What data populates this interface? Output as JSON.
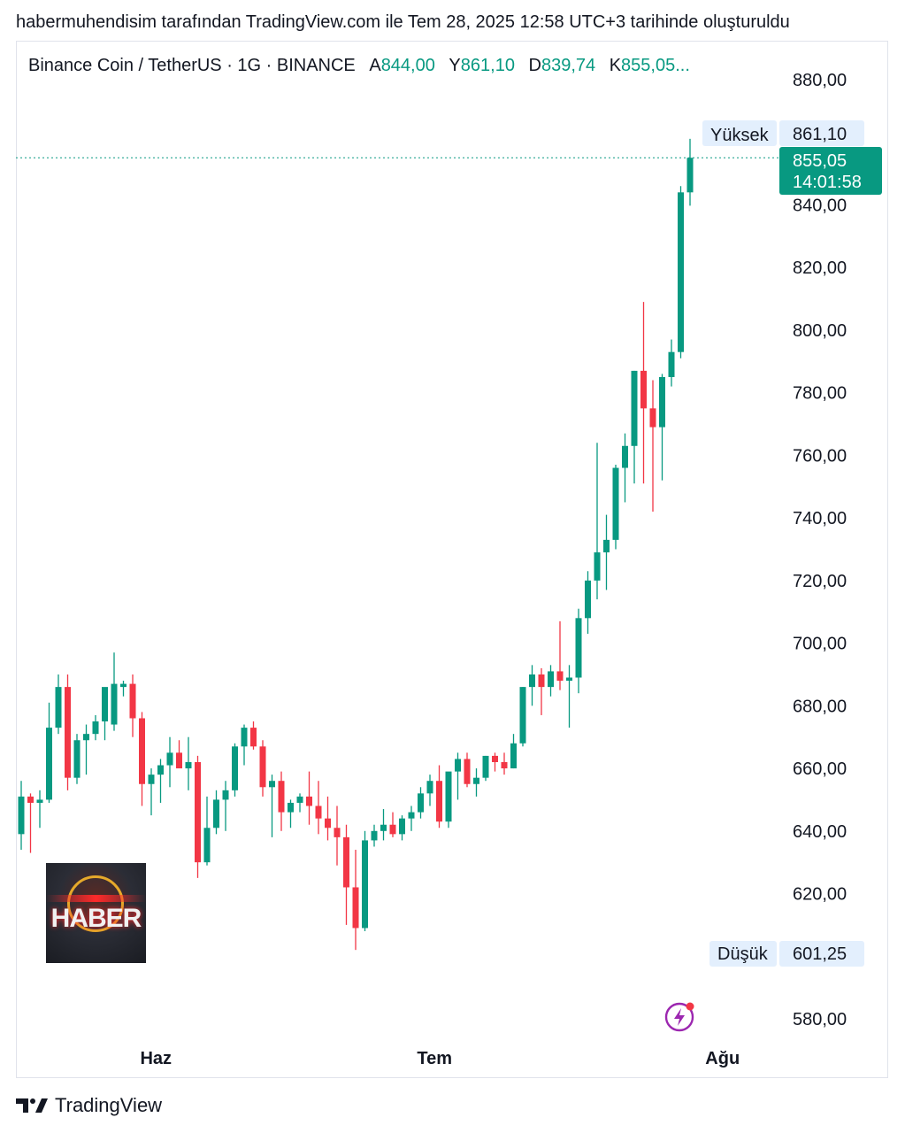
{
  "caption": "habermuhendisim tarafından TradingView.com ile Tem 28, 2025 12:58 UTC+3 tarihinde oluşturuldu",
  "legend": {
    "symbol": "Binance Coin / TetherUS · 1G · BINANCE",
    "open_label": "A",
    "open": "844,00",
    "high_label": "Y",
    "high": "861,10",
    "low_label": "D",
    "low": "839,74",
    "close_label": "K",
    "close": "855,05..."
  },
  "tags": {
    "high_label": "Yüksek",
    "high_value": "861,10",
    "low_label": "Düşük",
    "low_value": "601,25",
    "last_price": "855,05",
    "countdown": "14:01:58"
  },
  "logo_text": "HABER",
  "footer_brand": "TradingView",
  "colors": {
    "up": "#089981",
    "down": "#f23645",
    "tag_bg": "#e3effd",
    "text": "#131722"
  },
  "icons": {
    "watermark": "haber-logo-icon",
    "footer": "tradingview-logo-icon",
    "alert": "lightning-icon"
  },
  "chart_data": {
    "type": "candlestick",
    "y_ticks": [
      "880,00",
      "840,00",
      "820,00",
      "800,00",
      "780,00",
      "760,00",
      "740,00",
      "720,00",
      "700,00",
      "680,00",
      "660,00",
      "640,00",
      "620,00",
      "580,00"
    ],
    "y_tick_values": [
      880,
      840,
      820,
      800,
      780,
      760,
      740,
      720,
      700,
      680,
      660,
      640,
      620,
      580
    ],
    "x_ticks": [
      "Haz",
      "Tem",
      "Ağu"
    ],
    "x_tick_index": [
      14.5,
      44.5,
      75.5
    ],
    "ylim": [
      575,
      886
    ],
    "candles": [
      {
        "o": 639,
        "h": 656,
        "l": 634,
        "c": 651
      },
      {
        "o": 651,
        "h": 652,
        "l": 633,
        "c": 649
      },
      {
        "o": 649,
        "h": 653,
        "l": 641,
        "c": 650
      },
      {
        "o": 650,
        "h": 681,
        "l": 649,
        "c": 673
      },
      {
        "o": 673,
        "h": 690,
        "l": 671,
        "c": 686
      },
      {
        "o": 686,
        "h": 690,
        "l": 653,
        "c": 657
      },
      {
        "o": 657,
        "h": 671,
        "l": 655,
        "c": 669
      },
      {
        "o": 669,
        "h": 674,
        "l": 658,
        "c": 671
      },
      {
        "o": 671,
        "h": 677,
        "l": 669,
        "c": 675
      },
      {
        "o": 675,
        "h": 685,
        "l": 669,
        "c": 686
      },
      {
        "o": 674,
        "h": 697,
        "l": 672,
        "c": 687
      },
      {
        "o": 686,
        "h": 688,
        "l": 683,
        "c": 687
      },
      {
        "o": 687,
        "h": 690,
        "l": 670,
        "c": 676
      },
      {
        "o": 676,
        "h": 678,
        "l": 648,
        "c": 655
      },
      {
        "o": 655,
        "h": 660,
        "l": 645,
        "c": 658
      },
      {
        "o": 658,
        "h": 663,
        "l": 649,
        "c": 661
      },
      {
        "o": 661,
        "h": 670,
        "l": 654,
        "c": 665
      },
      {
        "o": 665,
        "h": 669,
        "l": 661,
        "c": 660
      },
      {
        "o": 660,
        "h": 670,
        "l": 653,
        "c": 662
      },
      {
        "o": 662,
        "h": 664,
        "l": 625,
        "c": 630
      },
      {
        "o": 630,
        "h": 651,
        "l": 629,
        "c": 641
      },
      {
        "o": 641,
        "h": 653,
        "l": 639,
        "c": 650
      },
      {
        "o": 650,
        "h": 656,
        "l": 640,
        "c": 653
      },
      {
        "o": 653,
        "h": 668,
        "l": 651,
        "c": 667
      },
      {
        "o": 667,
        "h": 674,
        "l": 661,
        "c": 673
      },
      {
        "o": 673,
        "h": 675,
        "l": 666,
        "c": 667
      },
      {
        "o": 667,
        "h": 669,
        "l": 651,
        "c": 654
      },
      {
        "o": 654,
        "h": 658,
        "l": 638,
        "c": 656
      },
      {
        "o": 656,
        "h": 659,
        "l": 640,
        "c": 646
      },
      {
        "o": 646,
        "h": 650,
        "l": 641,
        "c": 649
      },
      {
        "o": 649,
        "h": 652,
        "l": 646,
        "c": 651
      },
      {
        "o": 651,
        "h": 659,
        "l": 642,
        "c": 648
      },
      {
        "o": 648,
        "h": 656,
        "l": 639,
        "c": 644
      },
      {
        "o": 644,
        "h": 651,
        "l": 637,
        "c": 641
      },
      {
        "o": 641,
        "h": 648,
        "l": 629,
        "c": 638
      },
      {
        "o": 638,
        "h": 642,
        "l": 610,
        "c": 622
      },
      {
        "o": 622,
        "h": 634,
        "l": 602,
        "c": 609
      },
      {
        "o": 609,
        "h": 640,
        "l": 608,
        "c": 637
      },
      {
        "o": 637,
        "h": 642,
        "l": 635,
        "c": 640
      },
      {
        "o": 640,
        "h": 647,
        "l": 637,
        "c": 642
      },
      {
        "o": 642,
        "h": 646,
        "l": 638,
        "c": 639
      },
      {
        "o": 639,
        "h": 645,
        "l": 637,
        "c": 644
      },
      {
        "o": 644,
        "h": 648,
        "l": 640,
        "c": 646
      },
      {
        "o": 646,
        "h": 654,
        "l": 644,
        "c": 652
      },
      {
        "o": 652,
        "h": 658,
        "l": 648,
        "c": 656
      },
      {
        "o": 656,
        "h": 661,
        "l": 641,
        "c": 643
      },
      {
        "o": 643,
        "h": 657,
        "l": 641,
        "c": 659
      },
      {
        "o": 659,
        "h": 665,
        "l": 650,
        "c": 663
      },
      {
        "o": 663,
        "h": 665,
        "l": 654,
        "c": 655
      },
      {
        "o": 655,
        "h": 660,
        "l": 651,
        "c": 657
      },
      {
        "o": 657,
        "h": 664,
        "l": 656,
        "c": 664
      },
      {
        "o": 664,
        "h": 665,
        "l": 659,
        "c": 662
      },
      {
        "o": 662,
        "h": 665,
        "l": 658,
        "c": 660
      },
      {
        "o": 660,
        "h": 671,
        "l": 660,
        "c": 668
      },
      {
        "o": 668,
        "h": 686,
        "l": 667,
        "c": 686
      },
      {
        "o": 686,
        "h": 693,
        "l": 680,
        "c": 690
      },
      {
        "o": 690,
        "h": 692,
        "l": 677,
        "c": 686
      },
      {
        "o": 686,
        "h": 693,
        "l": 683,
        "c": 691
      },
      {
        "o": 691,
        "h": 707,
        "l": 685,
        "c": 688
      },
      {
        "o": 688,
        "h": 693,
        "l": 673,
        "c": 689
      },
      {
        "o": 689,
        "h": 711,
        "l": 684,
        "c": 708
      },
      {
        "o": 708,
        "h": 723,
        "l": 703,
        "c": 720
      },
      {
        "o": 720,
        "h": 764,
        "l": 714,
        "c": 729
      },
      {
        "o": 729,
        "h": 741,
        "l": 717,
        "c": 733
      },
      {
        "o": 733,
        "h": 757,
        "l": 730,
        "c": 756
      },
      {
        "o": 756,
        "h": 767,
        "l": 745,
        "c": 763
      },
      {
        "o": 763,
        "h": 787,
        "l": 751,
        "c": 787
      },
      {
        "o": 787,
        "h": 809,
        "l": 751,
        "c": 775
      },
      {
        "o": 775,
        "h": 784,
        "l": 742,
        "c": 769
      },
      {
        "o": 769,
        "h": 786,
        "l": 752,
        "c": 785
      },
      {
        "o": 785,
        "h": 797,
        "l": 782,
        "c": 793
      },
      {
        "o": 793,
        "h": 846,
        "l": 791,
        "c": 844
      },
      {
        "o": 844,
        "h": 861.1,
        "l": 839.74,
        "c": 855.05
      }
    ]
  }
}
